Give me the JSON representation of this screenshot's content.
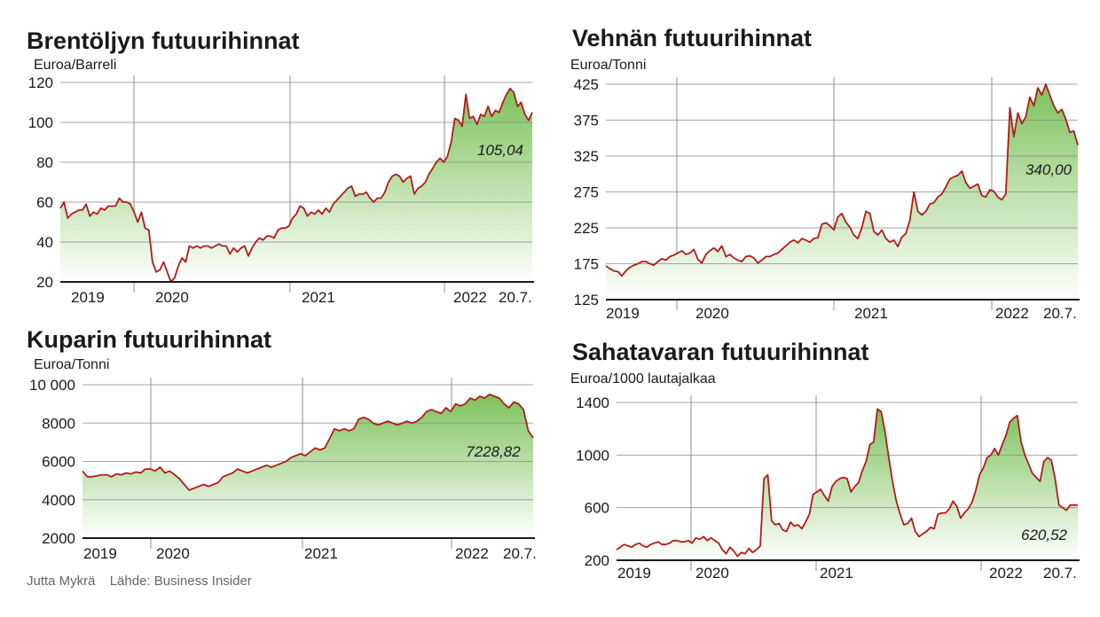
{
  "credits": {
    "author": "Jutta Mykrä",
    "source": "Lähde: Business Insider"
  },
  "colors": {
    "line": "#b01c1c",
    "fill_top": "#7cc25a",
    "fill_bottom": "#ffffff",
    "grid": "#8f8f8f",
    "axis": "#1a1a1a"
  },
  "chart_data": [
    {
      "type": "area",
      "title": "Brentöljyn futuurihinnat",
      "ylabel": "Euroa/Barreli",
      "ylim": [
        20,
        120
      ],
      "yticks": [
        "20",
        "40",
        "60",
        "80",
        "100",
        "120"
      ],
      "xlabels": [
        "2019",
        "2020",
        "2021",
        "2022",
        "20.7."
      ],
      "last_value_label": "105,04",
      "series": [
        {
          "values": [
            57,
            60,
            52,
            54,
            55,
            56,
            56,
            59,
            53,
            55,
            54,
            57,
            56,
            58,
            58,
            58,
            62,
            60,
            60,
            59,
            55,
            50,
            55,
            47,
            46,
            30,
            25,
            26,
            30,
            25,
            20,
            22,
            28,
            32,
            30,
            38,
            37,
            38,
            37,
            38,
            38,
            37,
            38,
            39,
            38,
            38,
            34,
            37,
            35,
            37,
            38,
            33,
            37,
            40,
            42,
            41,
            43,
            43,
            42,
            46,
            47,
            47,
            48,
            52,
            54,
            58,
            57,
            53,
            55,
            54,
            56,
            54,
            57,
            55,
            59,
            61,
            63,
            65,
            67,
            68,
            63,
            64,
            64,
            65,
            62,
            60,
            62,
            62,
            65,
            70,
            73,
            74,
            73,
            70,
            72,
            73,
            64,
            67,
            68,
            70,
            74,
            77,
            80,
            82,
            80,
            83,
            90,
            102,
            101,
            98,
            114,
            102,
            103,
            99,
            104,
            103,
            108,
            103,
            106,
            105,
            110,
            114,
            117,
            115,
            108,
            110,
            104,
            101,
            105
          ]
        }
      ]
    },
    {
      "type": "area",
      "title": "Vehnän futuurihinnat",
      "ylabel": "Euroa/Tonni",
      "ylim": [
        125,
        425
      ],
      "yticks": [
        "125",
        "175",
        "225",
        "275",
        "325",
        "375",
        "425"
      ],
      "xlabels": [
        "2019",
        "2020",
        "2021",
        "2022",
        "20.7."
      ],
      "last_value_label": "340,00",
      "series": [
        {
          "values": [
            172,
            168,
            165,
            164,
            158,
            165,
            170,
            173,
            175,
            178,
            178,
            175,
            173,
            178,
            182,
            180,
            185,
            187,
            190,
            193,
            188,
            190,
            195,
            181,
            176,
            188,
            193,
            197,
            192,
            200,
            185,
            188,
            183,
            180,
            178,
            185,
            186,
            183,
            176,
            180,
            185,
            185,
            188,
            190,
            195,
            200,
            205,
            208,
            204,
            210,
            208,
            205,
            210,
            211,
            230,
            232,
            228,
            222,
            240,
            245,
            233,
            226,
            215,
            210,
            225,
            248,
            245,
            220,
            215,
            222,
            210,
            205,
            208,
            199,
            212,
            217,
            235,
            275,
            248,
            243,
            248,
            258,
            260,
            268,
            272,
            282,
            293,
            296,
            298,
            304,
            288,
            280,
            283,
            286,
            270,
            268,
            278,
            276,
            268,
            264,
            272,
            392,
            352,
            385,
            370,
            380,
            407,
            395,
            420,
            410,
            425,
            410,
            395,
            385,
            390,
            376,
            358,
            360,
            340
          ]
        }
      ]
    },
    {
      "type": "area",
      "title": "Kuparin futuurihinnat",
      "ylabel": "Euroa/Tonni",
      "ylim": [
        2000,
        10000
      ],
      "yticks": [
        "2000",
        "4000",
        "6000",
        "8000",
        "10 000"
      ],
      "xlabels": [
        "2019",
        "2020",
        "2021",
        "2022",
        "20.7."
      ],
      "last_value_label": "7228,82",
      "series": [
        {
          "values": [
            5500,
            5200,
            5200,
            5250,
            5300,
            5300,
            5200,
            5350,
            5300,
            5400,
            5350,
            5450,
            5400,
            5600,
            5600,
            5500,
            5700,
            5400,
            5500,
            5300,
            5100,
            4800,
            4500,
            4600,
            4700,
            4800,
            4700,
            4800,
            4900,
            5200,
            5300,
            5400,
            5600,
            5500,
            5400,
            5500,
            5600,
            5700,
            5800,
            5700,
            5800,
            5900,
            6000,
            6200,
            6300,
            6400,
            6300,
            6500,
            6700,
            6600,
            6700,
            7200,
            7700,
            7600,
            7700,
            7600,
            7700,
            8200,
            8300,
            8200,
            8000,
            7900,
            8000,
            8100,
            8000,
            7900,
            8000,
            8100,
            8000,
            8100,
            8300,
            8600,
            8700,
            8600,
            8500,
            8800,
            8600,
            9000,
            8900,
            9000,
            9300,
            9200,
            9400,
            9300,
            9500,
            9400,
            9300,
            9000,
            8800,
            9100,
            9000,
            8700,
            7600,
            7228
          ]
        }
      ]
    },
    {
      "type": "area",
      "title": "Sahatavaran futuurihinnat",
      "ylabel": "Euroa/1000 lautajalkaa",
      "ylim": [
        200,
        1400
      ],
      "yticks": [
        "200",
        "600",
        "1000",
        "1400"
      ],
      "xlabels": [
        "2019",
        "2020",
        "2021",
        "2022",
        "20.7."
      ],
      "last_value_label": "620,52",
      "series": [
        {
          "values": [
            280,
            300,
            320,
            310,
            300,
            320,
            330,
            310,
            300,
            320,
            330,
            340,
            320,
            320,
            330,
            350,
            350,
            340,
            340,
            350,
            330,
            370,
            360,
            380,
            350,
            370,
            350,
            330,
            280,
            250,
            300,
            270,
            230,
            260,
            250,
            290,
            260,
            280,
            310,
            820,
            850,
            500,
            470,
            480,
            430,
            420,
            490,
            460,
            470,
            440,
            490,
            550,
            700,
            720,
            740,
            690,
            650,
            760,
            800,
            820,
            830,
            820,
            720,
            760,
            790,
            880,
            950,
            1080,
            1100,
            1350,
            1330,
            1180,
            980,
            800,
            650,
            550,
            470,
            480,
            520,
            420,
            380,
            400,
            420,
            450,
            440,
            550,
            560,
            560,
            590,
            650,
            610,
            520,
            560,
            590,
            640,
            730,
            850,
            900,
            980,
            1000,
            1050,
            1000,
            1080,
            1150,
            1250,
            1280,
            1300,
            1100,
            1000,
            930,
            860,
            830,
            800,
            950,
            980,
            960,
            820,
            620,
            600,
            580,
            620,
            620,
            620
          ]
        }
      ]
    }
  ]
}
